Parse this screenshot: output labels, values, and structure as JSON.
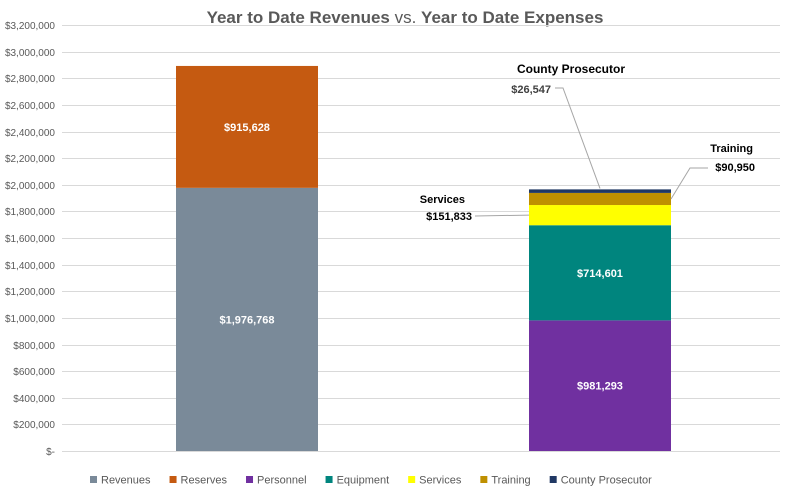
{
  "chart_data": {
    "type": "bar",
    "stacked": true,
    "title": {
      "part1": "Year to Date Revenues",
      "part2": " vs. ",
      "part3": "Year to Date Expenses"
    },
    "ylim": [
      0,
      3200000
    ],
    "y_ticks": [
      {
        "value": 0,
        "label": "$-"
      },
      {
        "value": 200000,
        "label": "$200,000"
      },
      {
        "value": 400000,
        "label": "$400,000"
      },
      {
        "value": 600000,
        "label": "$600,000"
      },
      {
        "value": 800000,
        "label": "$800,000"
      },
      {
        "value": 1000000,
        "label": "$1,000,000"
      },
      {
        "value": 1200000,
        "label": "$1,200,000"
      },
      {
        "value": 1400000,
        "label": "$1,400,000"
      },
      {
        "value": 1600000,
        "label": "$1,600,000"
      },
      {
        "value": 1800000,
        "label": "$1,800,000"
      },
      {
        "value": 2000000,
        "label": "$2,000,000"
      },
      {
        "value": 2200000,
        "label": "$2,200,000"
      },
      {
        "value": 2400000,
        "label": "$2,400,000"
      },
      {
        "value": 2600000,
        "label": "$2,600,000"
      },
      {
        "value": 2800000,
        "label": "$2,800,000"
      },
      {
        "value": 3000000,
        "label": "$3,000,000"
      },
      {
        "value": 3200000,
        "label": "$3,200,000"
      }
    ],
    "grid": true,
    "legend_position": "bottom",
    "series": [
      {
        "name": "Revenues",
        "color": "#7a8a99",
        "stack": 0,
        "value": 1976768,
        "label": "$1,976,768",
        "label_style": "inside"
      },
      {
        "name": "Reserves",
        "color": "#c55a11",
        "stack": 0,
        "value": 915628,
        "label": "$915,628",
        "label_style": "inside"
      },
      {
        "name": "Personnel",
        "color": "#7030a0",
        "stack": 1,
        "value": 981293,
        "label": "$981,293",
        "label_style": "inside"
      },
      {
        "name": "Equipment",
        "color": "#00857e",
        "stack": 1,
        "value": 714601,
        "label": "$714,601",
        "label_style": "inside"
      },
      {
        "name": "Services",
        "color": "#ffff00",
        "stack": 1,
        "value": 151833,
        "label": "$151,833",
        "label_style": "callout",
        "callout_name": "Services"
      },
      {
        "name": "Training",
        "color": "#bf9000",
        "stack": 1,
        "value": 90950,
        "label": "$90,950",
        "label_style": "callout",
        "callout_name": "Training"
      },
      {
        "name": "County Prosecutor",
        "color": "#203864",
        "stack": 1,
        "value": 26547,
        "label": "$26,547",
        "label_style": "callout",
        "callout_name": "County Prosecutor"
      }
    ]
  }
}
